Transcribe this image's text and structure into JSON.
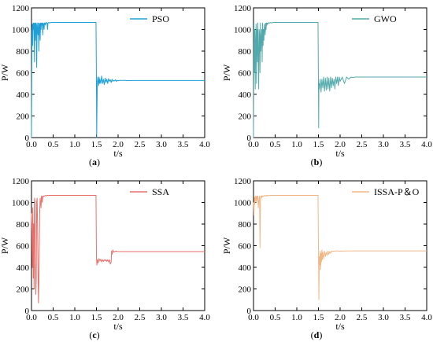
{
  "chart_data": [
    {
      "type": "line",
      "panel_label_open": "(",
      "panel_letter": "a",
      "panel_label_close": ")",
      "xlabel": "t/s",
      "ylabel": "P/W",
      "xlim": [
        0,
        4
      ],
      "ylim": [
        0,
        1200
      ],
      "xticks": [
        "0.0",
        "0.5",
        "1.0",
        "1.5",
        "2.0",
        "2.5",
        "3.0",
        "3.5",
        "4.0"
      ],
      "yticks": [
        "0",
        "200",
        "400",
        "600",
        "800",
        "1000",
        "1200"
      ],
      "legend_position": "top-right",
      "series": [
        {
          "name": "PSO",
          "color": "#1e9fd6",
          "x": [
            0,
            0.01,
            0.02,
            0.03,
            0.04,
            0.05,
            0.06,
            0.07,
            0.08,
            0.09,
            0.1,
            0.11,
            0.12,
            0.13,
            0.14,
            0.15,
            0.16,
            0.17,
            0.18,
            0.19,
            0.2,
            0.21,
            0.22,
            0.23,
            0.24,
            0.25,
            0.26,
            0.27,
            0.28,
            0.29,
            0.3,
            0.31,
            0.32,
            0.33,
            0.34,
            0.35,
            0.36,
            0.37,
            0.38,
            0.4,
            0.42,
            0.45,
            0.5,
            0.6,
            0.8,
            1.0,
            1.2,
            1.4,
            1.48,
            1.49,
            1.5,
            1.505,
            1.51,
            1.52,
            1.53,
            1.54,
            1.55,
            1.56,
            1.57,
            1.58,
            1.6,
            1.62,
            1.64,
            1.66,
            1.68,
            1.7,
            1.72,
            1.74,
            1.76,
            1.78,
            1.8,
            1.82,
            1.84,
            1.86,
            1.88,
            1.9,
            1.92,
            1.94,
            1.96,
            1.98,
            2.0,
            2.05,
            2.1,
            2.15,
            2.2,
            2.3,
            2.5,
            3.0,
            3.5,
            4.0
          ],
          "y": [
            0,
            980,
            1050,
            850,
            1060,
            1000,
            1060,
            700,
            1060,
            900,
            1060,
            1040,
            650,
            1060,
            1000,
            950,
            1060,
            800,
            1060,
            1050,
            900,
            1060,
            1000,
            1060,
            1040,
            1060,
            950,
            1060,
            1050,
            1000,
            1060,
            1060,
            1040,
            1060,
            1065,
            1060,
            1060,
            1000,
            1060,
            1065,
            1060,
            1065,
            1065,
            1065,
            1065,
            1065,
            1065,
            1065,
            1065,
            1065,
            500,
            0,
            200,
            500,
            560,
            520,
            480,
            560,
            500,
            540,
            500,
            570,
            500,
            540,
            490,
            550,
            510,
            540,
            500,
            545,
            520,
            535,
            510,
            540,
            520,
            530,
            525,
            535,
            520,
            530,
            525,
            530,
            528,
            530,
            526,
            528,
            528,
            528,
            528,
            528
          ]
        }
      ]
    },
    {
      "type": "line",
      "panel_label_open": "(",
      "panel_letter": "b",
      "panel_label_close": ")",
      "xlabel": "t/s",
      "ylabel": "P/W",
      "xlim": [
        0,
        4
      ],
      "ylim": [
        0,
        1200
      ],
      "xticks": [
        "0.0",
        "0.5",
        "1.0",
        "1.5",
        "2.0",
        "2.5",
        "3.0",
        "3.5",
        "4.0"
      ],
      "yticks": [
        "0",
        "200",
        "400",
        "600",
        "800",
        "1000",
        "1200"
      ],
      "legend_position": "top-right",
      "series": [
        {
          "name": "GWO",
          "color": "#52a9ab",
          "x": [
            0,
            0.01,
            0.02,
            0.03,
            0.04,
            0.05,
            0.06,
            0.07,
            0.08,
            0.09,
            0.1,
            0.11,
            0.12,
            0.13,
            0.14,
            0.15,
            0.16,
            0.17,
            0.18,
            0.19,
            0.2,
            0.21,
            0.22,
            0.23,
            0.24,
            0.25,
            0.26,
            0.27,
            0.28,
            0.29,
            0.3,
            0.31,
            0.32,
            0.33,
            0.34,
            0.35,
            0.36,
            0.37,
            0.38,
            0.4,
            0.42,
            0.45,
            0.5,
            0.6,
            0.8,
            1.0,
            1.2,
            1.4,
            1.49,
            1.5,
            1.505,
            1.51,
            1.52,
            1.54,
            1.56,
            1.58,
            1.6,
            1.62,
            1.64,
            1.66,
            1.68,
            1.7,
            1.72,
            1.74,
            1.76,
            1.78,
            1.8,
            1.82,
            1.84,
            1.86,
            1.88,
            1.9,
            1.92,
            1.94,
            1.96,
            1.98,
            2.0,
            2.05,
            2.1,
            2.15,
            2.2,
            2.25,
            2.3,
            2.35,
            2.4,
            2.5,
            3.0,
            3.5,
            4.0
          ],
          "y": [
            0,
            1060,
            600,
            1000,
            450,
            900,
            1050,
            500,
            1000,
            700,
            1060,
            800,
            450,
            1000,
            950,
            600,
            1060,
            800,
            900,
            1000,
            700,
            1060,
            850,
            1000,
            900,
            1050,
            1000,
            950,
            1060,
            1000,
            1060,
            1040,
            1060,
            1050,
            1060,
            1060,
            1065,
            1060,
            1060,
            1065,
            1060,
            1065,
            1065,
            1065,
            1065,
            1065,
            1065,
            1065,
            1065,
            500,
            90,
            500,
            450,
            540,
            420,
            540,
            460,
            560,
            430,
            550,
            440,
            560,
            450,
            550,
            430,
            560,
            460,
            550,
            480,
            540,
            450,
            560,
            500,
            560,
            480,
            560,
            520,
            560,
            500,
            560,
            540,
            560,
            555,
            560,
            560,
            560,
            560,
            560,
            560
          ]
        }
      ]
    },
    {
      "type": "line",
      "panel_label_open": "(",
      "panel_letter": "c",
      "panel_label_close": ")",
      "xlabel": "t/s",
      "ylabel": "P/W",
      "xlim": [
        0,
        4
      ],
      "ylim": [
        0,
        1200
      ],
      "xticks": [
        "0.0",
        "0.5",
        "1.0",
        "1.5",
        "2.0",
        "2.5",
        "3.0",
        "3.5",
        "4.0"
      ],
      "yticks": [
        "0",
        "200",
        "400",
        "600",
        "800",
        "1000",
        "1200"
      ],
      "legend_position": "top-right",
      "series": [
        {
          "name": "SSA",
          "color": "#e9706a",
          "x": [
            0,
            0.01,
            0.02,
            0.03,
            0.04,
            0.05,
            0.06,
            0.07,
            0.08,
            0.09,
            0.1,
            0.11,
            0.12,
            0.13,
            0.14,
            0.15,
            0.16,
            0.17,
            0.18,
            0.19,
            0.2,
            0.21,
            0.22,
            0.23,
            0.24,
            0.25,
            0.26,
            0.27,
            0.28,
            0.29,
            0.3,
            0.32,
            0.34,
            0.36,
            0.4,
            0.5,
            0.6,
            0.8,
            1.0,
            1.2,
            1.4,
            1.49,
            1.5,
            1.51,
            1.52,
            1.54,
            1.56,
            1.58,
            1.6,
            1.62,
            1.64,
            1.66,
            1.68,
            1.7,
            1.72,
            1.74,
            1.76,
            1.78,
            1.8,
            1.82,
            1.84,
            1.85,
            1.86,
            1.88,
            1.9,
            1.95,
            2.0,
            2.1,
            2.5,
            3.0,
            3.5,
            4.0
          ],
          "y": [
            900,
            700,
            400,
            950,
            300,
            800,
            200,
            1040,
            1000,
            450,
            150,
            300,
            1000,
            1040,
            800,
            400,
            70,
            250,
            600,
            900,
            1040,
            1000,
            950,
            1060,
            1040,
            1000,
            1060,
            1050,
            1060,
            1060,
            1060,
            1065,
            1060,
            1065,
            1065,
            1065,
            1065,
            1065,
            1065,
            1065,
            1065,
            1065,
            500,
            420,
            470,
            440,
            480,
            460,
            475,
            450,
            470,
            455,
            470,
            460,
            470,
            455,
            470,
            450,
            470,
            430,
            450,
            550,
            520,
            560,
            540,
            550,
            545,
            545,
            545,
            545,
            545,
            545
          ]
        }
      ]
    },
    {
      "type": "line",
      "panel_label_open": "(",
      "panel_letter": "d",
      "panel_label_close": ")",
      "xlabel": "t/s",
      "ylabel": "P/W",
      "xlim": [
        0,
        4
      ],
      "ylim": [
        0,
        1200
      ],
      "xticks": [
        "0.0",
        "0.5",
        "1.0",
        "1.5",
        "2.0",
        "2.5",
        "3.0",
        "3.5",
        "4.0"
      ],
      "yticks": [
        "0",
        "200",
        "400",
        "600",
        "800",
        "1000",
        "1200"
      ],
      "legend_position": "top-right",
      "series": [
        {
          "name": "ISSA-P＆O",
          "color": "#f2b787",
          "x": [
            0,
            0.01,
            0.02,
            0.03,
            0.04,
            0.05,
            0.06,
            0.07,
            0.08,
            0.09,
            0.1,
            0.11,
            0.12,
            0.13,
            0.14,
            0.15,
            0.16,
            0.17,
            0.18,
            0.19,
            0.2,
            0.21,
            0.22,
            0.23,
            0.24,
            0.25,
            0.26,
            0.27,
            0.28,
            0.29,
            0.3,
            0.31,
            0.32,
            0.33,
            0.34,
            0.36,
            0.38,
            0.4,
            0.5,
            0.8,
            1.0,
            1.2,
            1.4,
            1.49,
            1.5,
            1.51,
            1.52,
            1.53,
            1.54,
            1.55,
            1.56,
            1.57,
            1.58,
            1.59,
            1.6,
            1.62,
            1.64,
            1.66,
            1.68,
            1.7,
            1.72,
            1.74,
            1.76,
            1.78,
            1.8,
            1.85,
            1.9,
            2.0,
            2.2,
            2.5,
            3.0,
            3.5,
            4.0
          ],
          "y": [
            1000,
            880,
            1050,
            980,
            1040,
            1060,
            1000,
            1050,
            1060,
            1020,
            1060,
            950,
            1000,
            1040,
            1060,
            580,
            1000,
            1060,
            1040,
            1060,
            1050,
            1060,
            1060,
            1055,
            1060,
            1065,
            1060,
            1060,
            1060,
            1065,
            1060,
            1065,
            1060,
            1065,
            1060,
            1065,
            1065,
            1065,
            1065,
            1065,
            1065,
            1065,
            1065,
            1065,
            600,
            100,
            500,
            420,
            550,
            380,
            530,
            450,
            560,
            470,
            540,
            480,
            550,
            500,
            540,
            510,
            550,
            520,
            545,
            530,
            550,
            548,
            552,
            550,
            552,
            552,
            552,
            552,
            552
          ]
        }
      ]
    }
  ]
}
